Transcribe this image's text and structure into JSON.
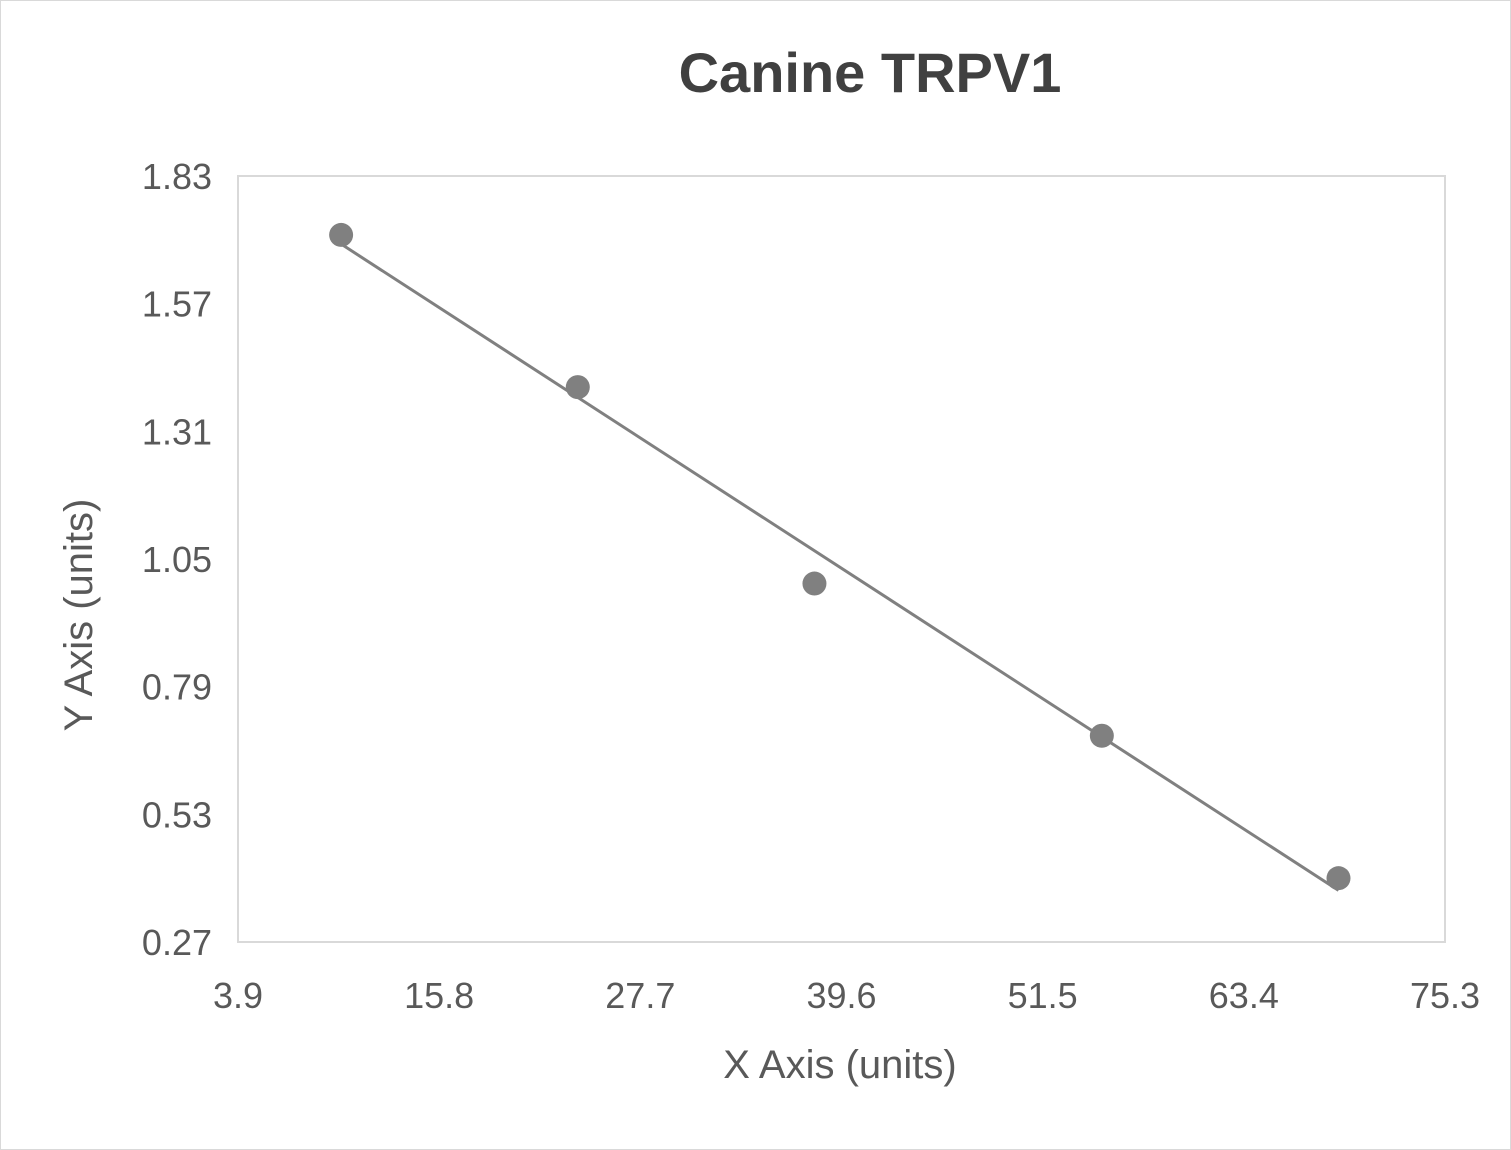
{
  "chart_data": {
    "type": "scatter",
    "title": "Canine TRPV1",
    "xlabel": "X Axis (units)",
    "ylabel": "Y Axis (units)",
    "xlim": [
      3.9,
      75.3
    ],
    "ylim": [
      0.27,
      1.83
    ],
    "xticks": [
      "3.9",
      "15.8",
      "27.7",
      "39.6",
      "51.5",
      "63.4",
      "75.3"
    ],
    "yticks": [
      "1.83",
      "1.57",
      "1.31",
      "1.05",
      "0.79",
      "0.53",
      "0.27"
    ],
    "grid": false,
    "legend": "none",
    "trendline": "linear",
    "marker_color": "#808080",
    "line_color": "#808080",
    "series": [
      {
        "x": [
          10,
          24,
          38,
          55,
          69
        ],
        "y": [
          1.71,
          1.4,
          1.0,
          0.69,
          0.4
        ]
      }
    ]
  }
}
